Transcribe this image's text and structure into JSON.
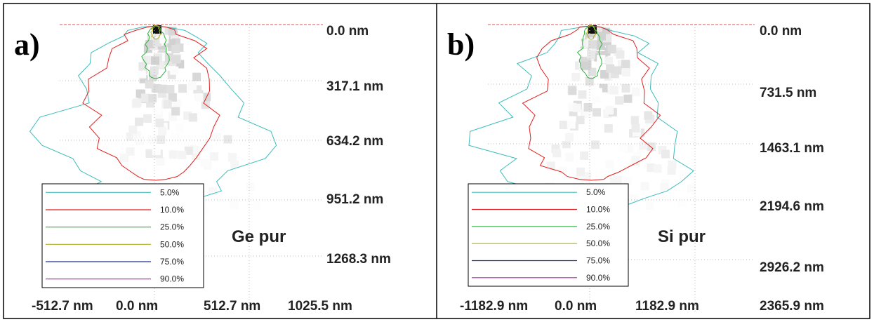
{
  "panels": [
    {
      "label": "a)",
      "material": "Ge pur",
      "y_labels": [
        "0.0 nm",
        "317.1 nm",
        "634.2 nm",
        "951.2 nm",
        "1268.3 nm"
      ],
      "x_labels": [
        "-512.7 nm",
        "0.0 nm",
        "512.7 nm",
        "1025.5 nm"
      ],
      "legend": [
        {
          "label": "5.0%",
          "color": "#3cbcbc"
        },
        {
          "label": "10.0%",
          "color": "#e02020"
        },
        {
          "label": "25.0%",
          "color": "#30b040"
        },
        {
          "label": "50.0%",
          "color": "#b0b020"
        },
        {
          "label": "75.0%",
          "color": "#203090"
        },
        {
          "label": "90.0%",
          "color": "#c020b0"
        }
      ]
    },
    {
      "label": "b)",
      "material": "Si pur",
      "y_labels": [
        "0.0 nm",
        "731.5 nm",
        "1463.1 nm",
        "2194.6 nm",
        "2926.2 nm"
      ],
      "x_labels": [
        "-1182.9 nm",
        "0.0 nm",
        "1182.9 nm",
        "2365.9 nm"
      ],
      "legend": [
        {
          "label": "5.0%",
          "color": "#3cbcbc"
        },
        {
          "label": "10.0%",
          "color": "#e02020"
        },
        {
          "label": "25.0%",
          "color": "#30b040"
        },
        {
          "label": "50.0%",
          "color": "#b0b020"
        },
        {
          "label": "75.0%",
          "color": "#203090"
        },
        {
          "label": "90.0%",
          "color": "#c020b0"
        }
      ]
    }
  ]
}
